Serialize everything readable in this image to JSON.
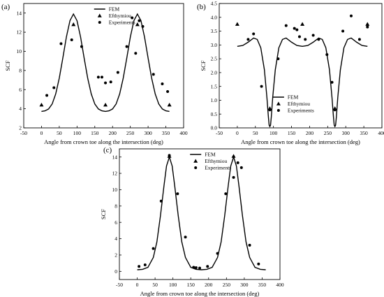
{
  "chart_data": [
    {
      "panel_label": "(a)",
      "type": "line",
      "xlabel": "Angle from crown toe along the intersection (deg)",
      "ylabel": "SCF",
      "xlim": [
        -50,
        400
      ],
      "ylim": [
        2,
        15
      ],
      "x_ticks": [
        -50,
        0,
        50,
        100,
        150,
        200,
        250,
        300,
        350,
        400
      ],
      "y_ticks": [
        2,
        4,
        6,
        8,
        10,
        12,
        14
      ],
      "legend_position": "top-center",
      "grid": false,
      "series": [
        {
          "name": "FEM",
          "style": "line",
          "x": [
            0,
            10,
            20,
            30,
            40,
            50,
            60,
            70,
            80,
            90,
            100,
            110,
            120,
            130,
            140,
            150,
            160,
            170,
            180,
            190,
            200,
            210,
            220,
            230,
            240,
            250,
            260,
            270,
            280,
            290,
            300,
            310,
            320,
            330,
            340,
            350,
            360
          ],
          "values": [
            3.72,
            3.78,
            3.98,
            4.5,
            5.55,
            7.2,
            9.3,
            11.5,
            13.2,
            13.9,
            13.2,
            11.5,
            9.3,
            7.2,
            5.55,
            4.5,
            3.98,
            3.78,
            3.72,
            3.78,
            3.98,
            4.5,
            5.55,
            7.2,
            9.3,
            11.5,
            13.2,
            13.9,
            13.2,
            11.5,
            9.3,
            7.2,
            5.55,
            4.5,
            3.98,
            3.78,
            3.72
          ]
        },
        {
          "name": "Efthymiou",
          "style": "triangle",
          "x": [
            0,
            90,
            180,
            270,
            360
          ],
          "values": [
            4.4,
            12.8,
            4.4,
            12.8,
            4.4
          ]
        },
        {
          "name": "Experiments",
          "style": "circle",
          "x": [
            15,
            35,
            55,
            85,
            113,
            160,
            170,
            180,
            195,
            215,
            240,
            255,
            265,
            275,
            285,
            315,
            340,
            355
          ],
          "values": [
            5.4,
            6.2,
            10.8,
            11.2,
            10.5,
            7.3,
            7.3,
            6.7,
            6.8,
            7.8,
            10.5,
            13.5,
            9.8,
            13.2,
            12.6,
            7.6,
            6.6,
            5.8
          ]
        }
      ]
    },
    {
      "panel_label": "(b)",
      "type": "line",
      "xlabel": "Angle from crown toe along the intersection (deg)",
      "ylabel": "SCF",
      "xlim": [
        -50,
        400
      ],
      "ylim": [
        0,
        4.5
      ],
      "x_ticks": [
        -50,
        0,
        50,
        100,
        150,
        200,
        250,
        300,
        350,
        400
      ],
      "y_ticks": [
        0.0,
        0.5,
        1.0,
        1.5,
        2.0,
        2.5,
        3.0,
        3.5,
        4.0,
        4.5
      ],
      "legend_position": "bottom-center",
      "grid": false,
      "series": [
        {
          "name": "FEM",
          "style": "line",
          "x": [
            0,
            15,
            30,
            45,
            55,
            65,
            75,
            82,
            86,
            88,
            90,
            92,
            94,
            98,
            105,
            115,
            125,
            135,
            150,
            165,
            180,
            195,
            210,
            225,
            235,
            245,
            255,
            262,
            266,
            268,
            270,
            272,
            274,
            278,
            285,
            295,
            305,
            315,
            330,
            345,
            360
          ],
          "values": [
            2.95,
            2.98,
            3.1,
            3.25,
            3.2,
            2.9,
            2.1,
            1.1,
            0.4,
            0.1,
            0.05,
            0.1,
            0.4,
            1.1,
            2.1,
            2.9,
            3.2,
            3.25,
            3.1,
            2.98,
            2.95,
            2.98,
            3.1,
            3.25,
            3.2,
            2.9,
            2.1,
            1.1,
            0.4,
            0.1,
            0.05,
            0.1,
            0.4,
            1.1,
            2.1,
            2.9,
            3.2,
            3.25,
            3.1,
            2.98,
            2.95
          ]
        },
        {
          "name": "Efthymiou",
          "style": "triangle",
          "x": [
            0,
            90,
            180,
            270,
            360
          ],
          "values": [
            3.75,
            0.7,
            3.75,
            0.7,
            3.75
          ]
        },
        {
          "name": "Experiments",
          "style": "circle",
          "x": [
            30,
            45,
            67,
            90,
            113,
            135,
            158,
            165,
            172,
            188,
            210,
            225,
            248,
            262,
            270,
            292,
            315,
            338,
            360
          ],
          "values": [
            3.2,
            3.4,
            1.5,
            0.65,
            2.5,
            3.7,
            3.6,
            3.55,
            3.3,
            3.2,
            3.35,
            3.2,
            2.65,
            1.65,
            0.65,
            3.5,
            4.05,
            3.2,
            3.65
          ]
        }
      ]
    },
    {
      "panel_label": "(c)",
      "type": "line",
      "xlabel": "Angle from crown toe along the intersection (deg)",
      "ylabel": "SCF",
      "xlim": [
        -50,
        400
      ],
      "ylim": [
        -1,
        15
      ],
      "x_ticks": [
        -50,
        0,
        50,
        100,
        150,
        200,
        250,
        300,
        350,
        400
      ],
      "y_ticks": [
        0,
        2,
        4,
        6,
        8,
        10,
        12,
        14
      ],
      "legend_position": "top-center",
      "grid": false,
      "series": [
        {
          "name": "FEM",
          "style": "line",
          "x": [
            0,
            15,
            30,
            45,
            55,
            65,
            75,
            82,
            90,
            98,
            105,
            115,
            125,
            135,
            150,
            165,
            180,
            195,
            210,
            225,
            235,
            245,
            255,
            262,
            270,
            278,
            285,
            295,
            305,
            315,
            330,
            345,
            360
          ],
          "values": [
            0.2,
            0.25,
            0.5,
            1.7,
            3.6,
            6.8,
            10.5,
            12.9,
            14.0,
            12.9,
            10.5,
            6.8,
            3.6,
            1.7,
            0.5,
            0.25,
            0.2,
            0.25,
            0.5,
            1.7,
            3.6,
            6.8,
            10.5,
            12.9,
            14.0,
            12.9,
            10.5,
            6.8,
            3.6,
            1.7,
            0.5,
            0.25,
            0.2
          ]
        },
        {
          "name": "Efthymiou",
          "style": "triangle",
          "x": [
            90,
            270
          ],
          "values": [
            14.1,
            14.1
          ]
        },
        {
          "name": "Experiments",
          "style": "circle",
          "x": [
            5,
            22,
            45,
            67,
            90,
            113,
            135,
            158,
            165,
            175,
            197,
            225,
            248,
            270,
            282,
            292,
            315,
            340
          ],
          "values": [
            0.6,
            0.8,
            2.8,
            8.6,
            14.2,
            9.5,
            4.2,
            0.5,
            0.45,
            0.4,
            0.6,
            2.2,
            9.5,
            11.5,
            13.3,
            12.7,
            3.2,
            0.9
          ]
        }
      ]
    }
  ]
}
